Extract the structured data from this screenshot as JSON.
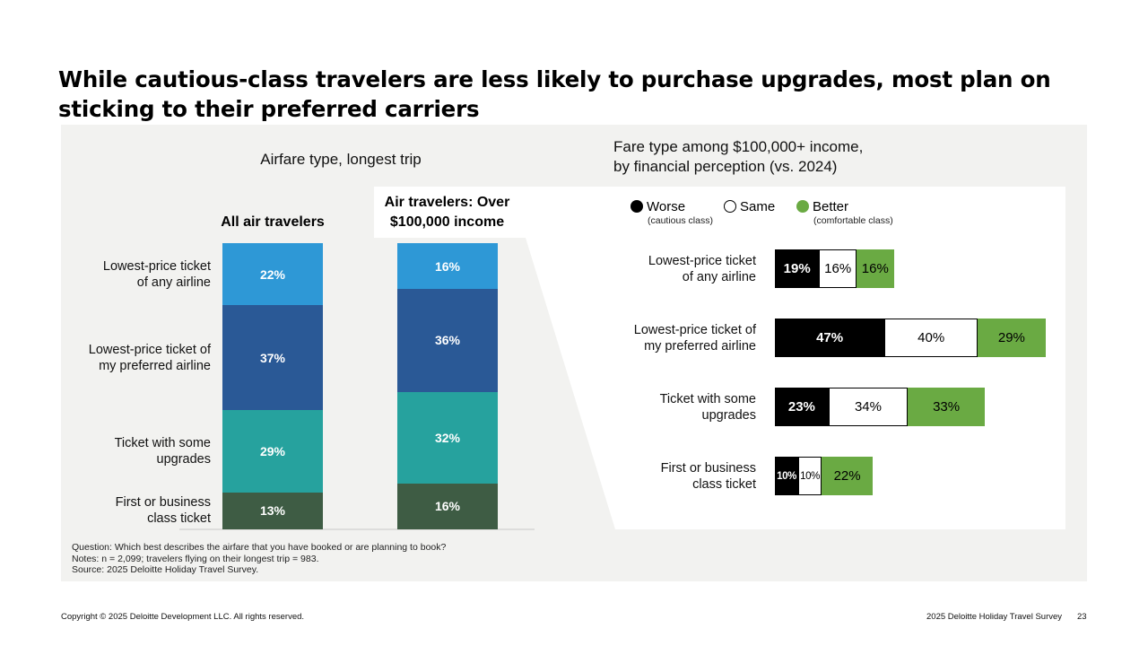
{
  "title": "While cautious-class travelers are less likely to purchase upgrades, most plan on sticking to their preferred carriers",
  "left": {
    "subtitle": "Airfare type, longest trip",
    "col1_header": "All air travelers",
    "col2_header": "Air travelers: Over $100,000 income"
  },
  "right": {
    "subtitle_line1": "Fare type among $100,000+ income,",
    "subtitle_line2": "by financial perception (vs. 2024)",
    "legend": [
      {
        "label": "Worse",
        "sub": "(cautious class)"
      },
      {
        "label": "Same",
        "sub": ""
      },
      {
        "label": "Better",
        "sub": "(comfortable class)"
      }
    ]
  },
  "notes": [
    "Question: Which best describes the airfare that you have booked or are planning to book?",
    "Notes: n = 2,099; travelers flying on their longest trip = 983.",
    "Source: 2025 Deloitte Holiday Travel Survey."
  ],
  "footer": {
    "copyright": "Copyright © 2025 Deloitte Development LLC. All rights reserved.",
    "survey": "2025 Deloitte Holiday Travel Survey",
    "page": "23"
  },
  "colors": {
    "lowest_any": "#2e98d6",
    "lowest_pref": "#2a5996",
    "some_upgrades": "#26a29e",
    "first_business": "#3e5c44",
    "worse": "#000000",
    "same": "#ffffff",
    "better": "#6aaa43"
  },
  "chart_data": [
    {
      "type": "bar",
      "stacked": true,
      "title": "Airfare type, longest trip",
      "categories": [
        "All air travelers",
        "Air travelers: Over $100,000 income"
      ],
      "series": [
        {
          "name": "Lowest-price ticket of any airline",
          "name_line1": "Lowest-price ticket",
          "name_line2": "of any airline",
          "values": [
            22,
            16
          ],
          "labels": [
            "22%",
            "16%"
          ]
        },
        {
          "name": "Lowest-price ticket of my preferred airline",
          "name_line1": "Lowest-price ticket of",
          "name_line2": "my preferred airline",
          "values": [
            37,
            36
          ],
          "labels": [
            "37%",
            "36%"
          ]
        },
        {
          "name": "Ticket with some upgrades",
          "name_line1": "Ticket with some",
          "name_line2": "upgrades",
          "values": [
            29,
            32
          ],
          "labels": [
            "29%",
            "32%"
          ]
        },
        {
          "name": "First or business class ticket",
          "name_line1": "First or business",
          "name_line2": "class ticket",
          "values": [
            13,
            16
          ],
          "labels": [
            "13%",
            "16%"
          ]
        }
      ],
      "ylim": [
        0,
        100
      ]
    },
    {
      "type": "bar",
      "orientation": "horizontal",
      "stacked": true,
      "title": "Fare type among $100,000+ income, by financial perception (vs. 2024)",
      "categories": [
        "Lowest-price ticket of any airline",
        "Lowest-price ticket of my preferred airline",
        "Ticket with some upgrades",
        "First or business class ticket"
      ],
      "series": [
        {
          "name": "Worse",
          "values": [
            19,
            47,
            23,
            10
          ],
          "labels": [
            "19%",
            "47%",
            "23%",
            "10%"
          ]
        },
        {
          "name": "Same",
          "values": [
            16,
            40,
            34,
            10
          ],
          "labels": [
            "16%",
            "40%",
            "34%",
            "10%"
          ]
        },
        {
          "name": "Better",
          "values": [
            16,
            29,
            33,
            22
          ],
          "labels": [
            "16%",
            "29%",
            "33%",
            "22%"
          ]
        }
      ]
    }
  ]
}
